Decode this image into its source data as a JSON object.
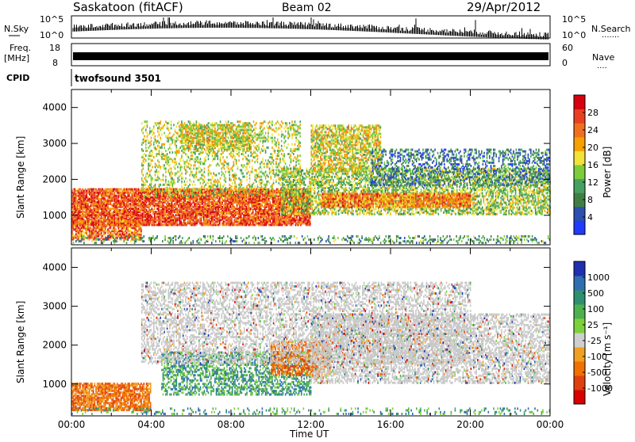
{
  "header": {
    "station": "Saskatoon (fitACF)",
    "beam": "Beam 02",
    "date": "29/Apr/2012"
  },
  "side_labels": {
    "nsky": "N.Sky",
    "nsearch": "N.Search",
    "nsearch_dots": "·······",
    "freq_top": "Freq.",
    "freq_unit": "[MHz]",
    "nave": "Nave",
    "nave_dots": "····",
    "cpid": "CPID",
    "cpid_value": "twofsound 3501"
  },
  "noise_axis_left": [
    "10^5",
    "10^0"
  ],
  "noise_axis_right": [
    "10^5",
    "10^0"
  ],
  "freq_axis_left": [
    "18",
    "8"
  ],
  "freq_axis_right": [
    "60",
    "0"
  ],
  "colors": {
    "power": [
      "#1f3bff",
      "#2c4fb0",
      "#3f7f45",
      "#47a05f",
      "#7ccc3c",
      "#f2e23a",
      "#f6a100",
      "#f07020",
      "#e84020",
      "#d80010"
    ],
    "velocity": [
      "#1f2fb0",
      "#2f6fb0",
      "#2f8f6f",
      "#4fb04f",
      "#7cd23c",
      "#cfcfcf",
      "#f0a020",
      "#f07000",
      "#e04010",
      "#d80000"
    ],
    "ground": "#c8c8c8"
  },
  "chart_data": [
    {
      "type": "heatmap",
      "name": "power-panel",
      "ylabel": "Slant Range [km]",
      "yticks": [
        "1000",
        "2000",
        "3000",
        "4000"
      ],
      "ylim": [
        180,
        4500
      ],
      "xlim_hours": [
        0,
        24
      ],
      "colorbar": {
        "label": "Power [dB]",
        "ticks": [
          "4",
          "8",
          "12",
          "16",
          "20",
          "24",
          "28"
        ],
        "range": [
          0,
          32
        ]
      },
      "bands": [
        {
          "t0": 0.0,
          "t1": 12.0,
          "r0": 700,
          "r1": 1700,
          "density": 0.85,
          "level": 0.85
        },
        {
          "t0": 0.0,
          "t1": 3.5,
          "r0": 300,
          "r1": 800,
          "density": 0.7,
          "level": 0.8
        },
        {
          "t0": 3.5,
          "t1": 11.5,
          "r0": 1500,
          "r1": 3600,
          "density": 0.3,
          "level": 0.5
        },
        {
          "t0": 5.5,
          "t1": 9.0,
          "r0": 2800,
          "r1": 3500,
          "density": 0.6,
          "level": 0.55
        },
        {
          "t0": 10.5,
          "t1": 24.0,
          "r0": 1000,
          "r1": 2300,
          "density": 0.55,
          "level": 0.45
        },
        {
          "t0": 12.5,
          "t1": 20.0,
          "r0": 1200,
          "r1": 1600,
          "density": 0.8,
          "level": 0.75
        },
        {
          "t0": 12.0,
          "t1": 15.5,
          "r0": 2200,
          "r1": 3500,
          "density": 0.65,
          "level": 0.55
        },
        {
          "t0": 15.0,
          "t1": 24.0,
          "r0": 1800,
          "r1": 2800,
          "density": 0.35,
          "level": 0.2
        },
        {
          "t0": 0.0,
          "t1": 24.0,
          "r0": 200,
          "r1": 400,
          "density": 0.25,
          "level": 0.3
        }
      ]
    },
    {
      "type": "heatmap",
      "name": "velocity-panel",
      "xlabel": "Time UT",
      "ylabel": "Slant Range [km]",
      "yticks": [
        "1000",
        "2000",
        "3000",
        "4000"
      ],
      "xticks": [
        "00:00",
        "04:00",
        "08:00",
        "12:00",
        "16:00",
        "20:00",
        "00:00"
      ],
      "ylim": [
        180,
        4500
      ],
      "xlim_hours": [
        0,
        24
      ],
      "colorbar": {
        "label": "Velocity [m s⁻¹]",
        "ticks": [
          "1000",
          "500",
          "100",
          "25",
          "-25",
          "-100",
          "-500",
          "-1000"
        ]
      },
      "bands": [
        {
          "t0": 0.0,
          "t1": 4.0,
          "r0": 300,
          "r1": 1000,
          "density": 0.8,
          "kind": "neg"
        },
        {
          "t0": 4.5,
          "t1": 12.0,
          "r0": 700,
          "r1": 1800,
          "density": 0.5,
          "kind": "pos"
        },
        {
          "t0": 10.0,
          "t1": 13.0,
          "r0": 1200,
          "r1": 2100,
          "density": 0.6,
          "kind": "neg"
        },
        {
          "t0": 3.5,
          "t1": 20.0,
          "r0": 1500,
          "r1": 3600,
          "density": 0.45,
          "kind": "ground"
        },
        {
          "t0": 12.0,
          "t1": 24.0,
          "r0": 1000,
          "r1": 2800,
          "density": 0.55,
          "kind": "ground"
        },
        {
          "t0": 0.0,
          "t1": 24.0,
          "r0": 200,
          "r1": 380,
          "density": 0.2,
          "kind": "pos"
        }
      ]
    }
  ]
}
